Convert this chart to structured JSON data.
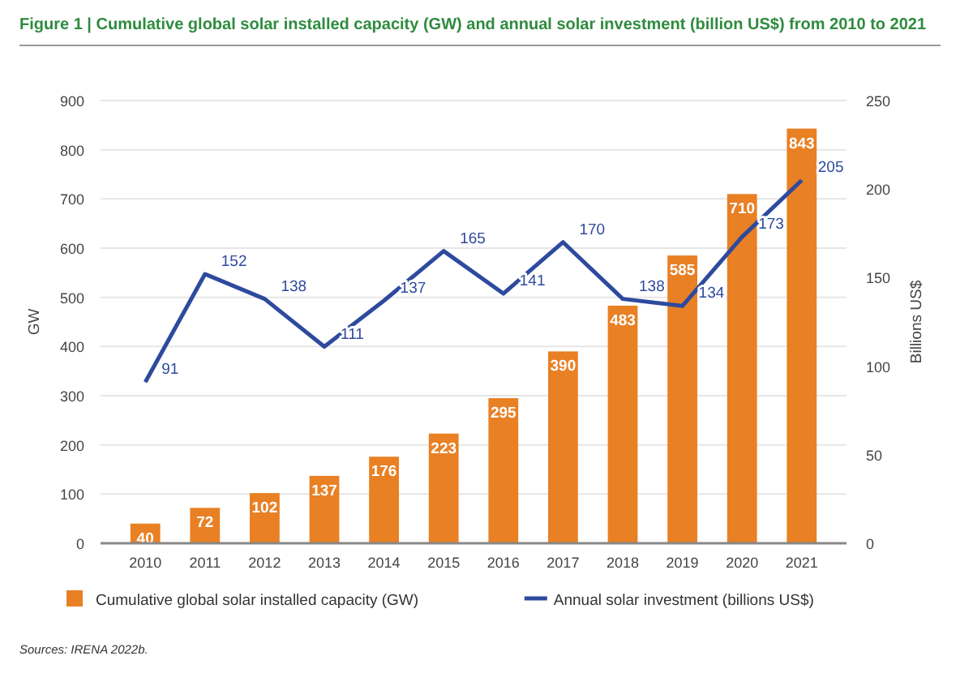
{
  "chart_data": {
    "type": "bar",
    "title": "Figure 1 | Cumulative global solar installed capacity (GW) and annual solar investment (billion US$) from 2010 to 2021",
    "categories": [
      "2010",
      "2011",
      "2012",
      "2013",
      "2014",
      "2015",
      "2016",
      "2017",
      "2018",
      "2019",
      "2020",
      "2021"
    ],
    "series": [
      {
        "name": "Cumulative global solar installed capacity (GW)",
        "color": "#e98024",
        "values": [
          40,
          72,
          102,
          137,
          176,
          223,
          295,
          390,
          483,
          585,
          710,
          843
        ]
      },
      {
        "name": "Annual solar investment (billions US$)",
        "type": "line",
        "axis": "y2",
        "color": "#2e4a9e",
        "values": [
          91,
          152,
          138,
          111,
          137,
          165,
          141,
          170,
          138,
          134,
          173,
          205
        ]
      }
    ],
    "ylabel": "GW",
    "y2label": "Billions US$",
    "ylim": [
      0,
      900
    ],
    "yticks": [
      0,
      100,
      200,
      300,
      400,
      500,
      600,
      700,
      800,
      900
    ],
    "y2lim": [
      0,
      250
    ],
    "y2ticks": [
      0,
      50,
      100,
      150,
      200,
      250
    ],
    "grid": "y",
    "legend": "bottom",
    "data_labels": true,
    "marker": "none",
    "line_style": "solid",
    "annotations": [
      "Sources: IRENA 2022b."
    ]
  }
}
